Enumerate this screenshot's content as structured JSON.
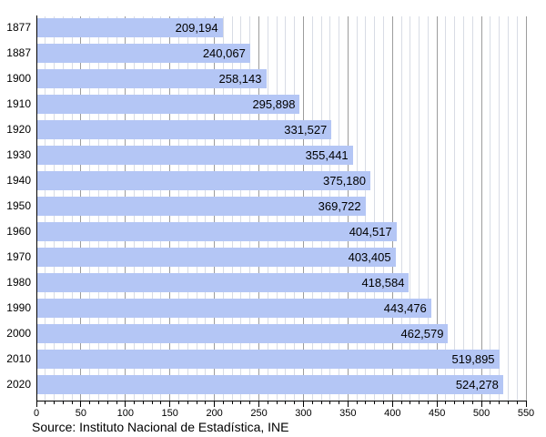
{
  "chart_data": {
    "type": "bar",
    "orientation": "horizontal",
    "categories": [
      "1877",
      "1887",
      "1900",
      "1910",
      "1920",
      "1930",
      "1940",
      "1950",
      "1960",
      "1970",
      "1980",
      "1990",
      "2000",
      "2010",
      "2020"
    ],
    "values": [
      209194,
      240067,
      258143,
      295898,
      331527,
      355441,
      375180,
      369722,
      404517,
      403405,
      418584,
      443476,
      462579,
      519895,
      524278
    ],
    "value_labels": [
      "209,194",
      "240,067",
      "258,143",
      "295,898",
      "331,527",
      "355,441",
      "375,180",
      "369,722",
      "404,517",
      "403,405",
      "418,584",
      "443,476",
      "462,579",
      "519,895",
      "524,278"
    ],
    "title": "",
    "xlabel": "",
    "ylabel": "",
    "axis": {
      "xmin": 0,
      "xmax": 550,
      "major_step": 50,
      "minor_step": 10,
      "units": "thousands",
      "tick_labels": [
        "0",
        "50",
        "100",
        "150",
        "200",
        "250",
        "300",
        "350",
        "400",
        "450",
        "500",
        "550"
      ]
    },
    "grid": "on",
    "legend": "none"
  },
  "footer": {
    "source": "Source: Instituto Nacional de Estadística, INE"
  },
  "colors": {
    "background": "#ffffff",
    "bar": "#b4c6f5",
    "grid_minor": "#d8dce5",
    "grid_major": "#9c9c9c",
    "axis": "#000000",
    "text": "#000000"
  }
}
